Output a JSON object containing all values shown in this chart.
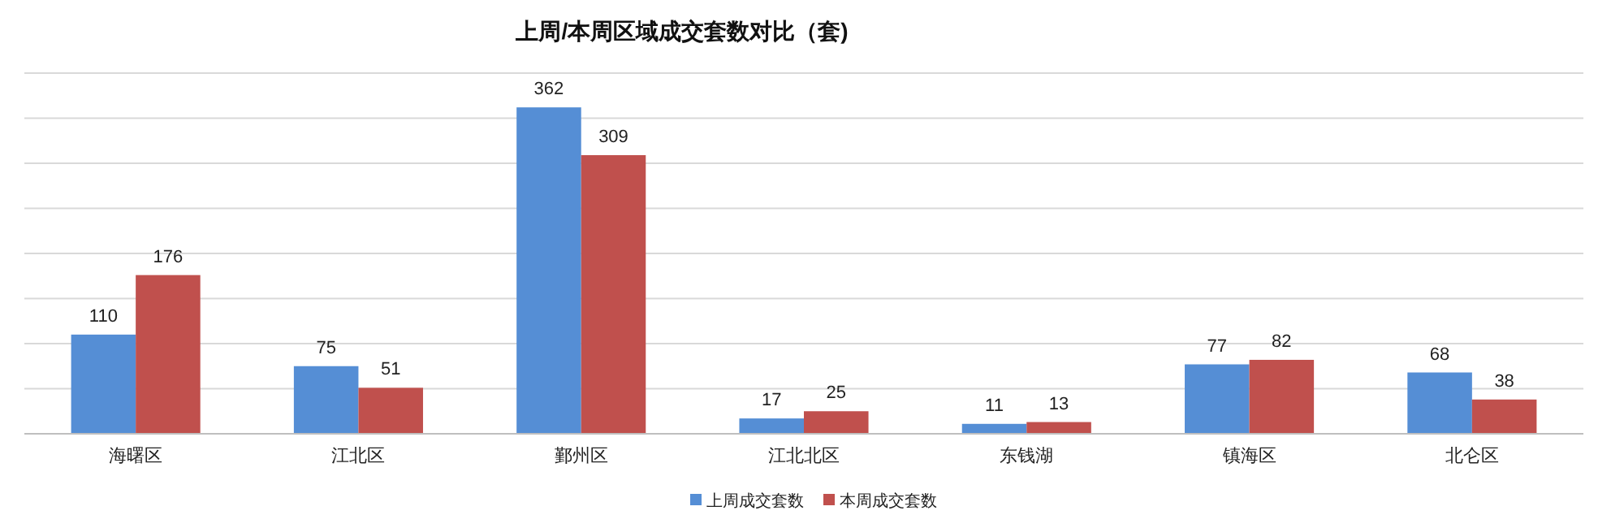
{
  "chart_data": {
    "type": "bar",
    "title": "上周/本周区域成交套数对比（套)",
    "categories": [
      "海曙区",
      "江北区",
      "鄞州区",
      "江北北区",
      "东钱湖",
      "镇海区",
      "北仑区"
    ],
    "series": [
      {
        "name": "上周成交套数",
        "color": "#558ed5",
        "values": [
          110,
          75,
          362,
          17,
          11,
          77,
          68
        ]
      },
      {
        "name": "本周成交套数",
        "color": "#c0504d",
        "values": [
          176,
          51,
          309,
          25,
          13,
          82,
          38
        ]
      }
    ],
    "ylim": [
      0,
      400
    ],
    "yticks": [
      {
        "value": 0,
        "label": null
      },
      {
        "value": 50,
        "label": null
      },
      {
        "value": 100,
        "label": null
      },
      {
        "value": 150,
        "label": null
      },
      {
        "value": 200,
        "label": null
      },
      {
        "value": 250,
        "label": null
      },
      {
        "value": 300,
        "label": null
      },
      {
        "value": 350,
        "label": null
      },
      {
        "value": 400,
        "label": null
      }
    ],
    "grid": "y",
    "data_labels": true,
    "legend": "bottom"
  }
}
